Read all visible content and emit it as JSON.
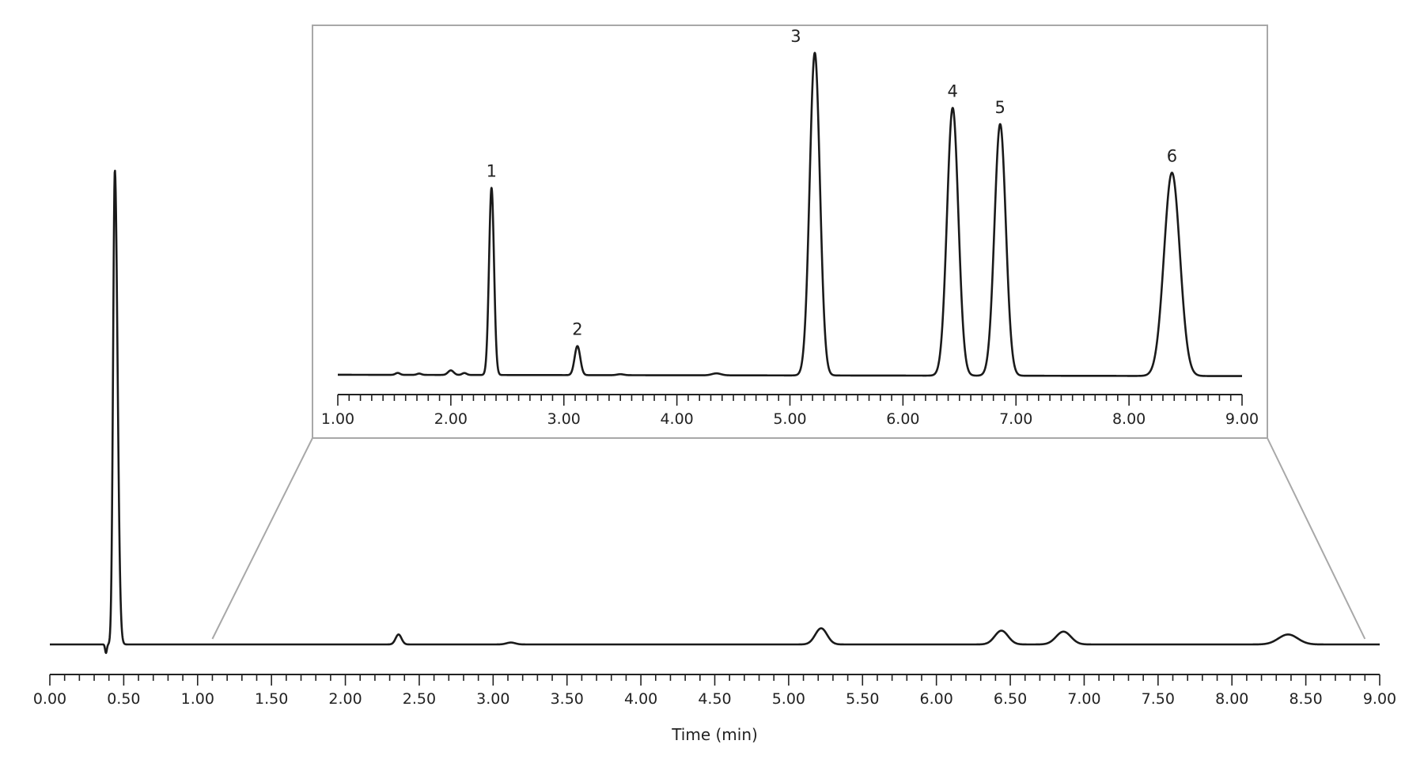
{
  "chart_data": [
    {
      "id": "main",
      "type": "line",
      "title": "",
      "xlabel": "Time (min)",
      "ylabel": "",
      "xlim": [
        0,
        9
      ],
      "ylim": [
        -0.05,
        1.0
      ],
      "grid": false,
      "x_ticks": [
        "0.00",
        "0.50",
        "1.00",
        "1.50",
        "2.00",
        "2.50",
        "3.00",
        "3.50",
        "4.00",
        "4.50",
        "5.00",
        "5.50",
        "6.00",
        "6.50",
        "7.00",
        "7.50",
        "8.00",
        "8.50",
        "9.00"
      ],
      "series": [
        {
          "baseline": 0,
          "peaks": [
            {
              "x": 0.44,
              "height": 1.0,
              "sigma": 0.012,
              "tail": 0.018
            },
            {
              "x": 2.36,
              "height": 0.021,
              "sigma": 0.02
            },
            {
              "x": 3.12,
              "height": 0.004,
              "sigma": 0.03
            },
            {
              "x": 5.22,
              "height": 0.034,
              "sigma": 0.04
            },
            {
              "x": 6.44,
              "height": 0.029,
              "sigma": 0.045
            },
            {
              "x": 6.86,
              "height": 0.027,
              "sigma": 0.05
            },
            {
              "x": 8.38,
              "height": 0.021,
              "sigma": 0.065
            }
          ],
          "dip": {
            "x": 0.38,
            "depth": 0.018,
            "sigma": 0.006
          }
        }
      ]
    },
    {
      "id": "inset",
      "type": "line",
      "title": "",
      "xlabel": "",
      "ylabel": "",
      "xlim": [
        1,
        9
      ],
      "ylim": [
        0,
        1.0
      ],
      "grid": false,
      "x_ticks": [
        "1.00",
        "2.00",
        "3.00",
        "4.00",
        "5.00",
        "6.00",
        "7.00",
        "8.00",
        "9.00"
      ],
      "peak_labels": [
        "1",
        "2",
        "3",
        "4",
        "5",
        "6"
      ],
      "series": [
        {
          "baseline": 0.005,
          "peaks": [
            {
              "label": "1",
              "x": 2.36,
              "height": 0.58,
              "sigma": 0.022
            },
            {
              "label": "2",
              "x": 3.12,
              "height": 0.09,
              "sigma": 0.025
            },
            {
              "label": "3",
              "x": 5.22,
              "height": 1.0,
              "sigma": 0.045
            },
            {
              "label": "4",
              "x": 6.44,
              "height": 0.83,
              "sigma": 0.05
            },
            {
              "label": "5",
              "x": 6.86,
              "height": 0.78,
              "sigma": 0.05
            },
            {
              "label": "6",
              "x": 8.38,
              "height": 0.63,
              "sigma": 0.07
            }
          ],
          "minor": [
            {
              "x": 1.53,
              "height": 0.006,
              "sigma": 0.02
            },
            {
              "x": 1.72,
              "height": 0.004,
              "sigma": 0.02
            },
            {
              "x": 2.0,
              "height": 0.014,
              "sigma": 0.025
            },
            {
              "x": 2.12,
              "height": 0.006,
              "sigma": 0.02
            },
            {
              "x": 3.5,
              "height": 0.003,
              "sigma": 0.03
            },
            {
              "x": 4.35,
              "height": 0.006,
              "sigma": 0.04
            }
          ]
        }
      ]
    }
  ]
}
